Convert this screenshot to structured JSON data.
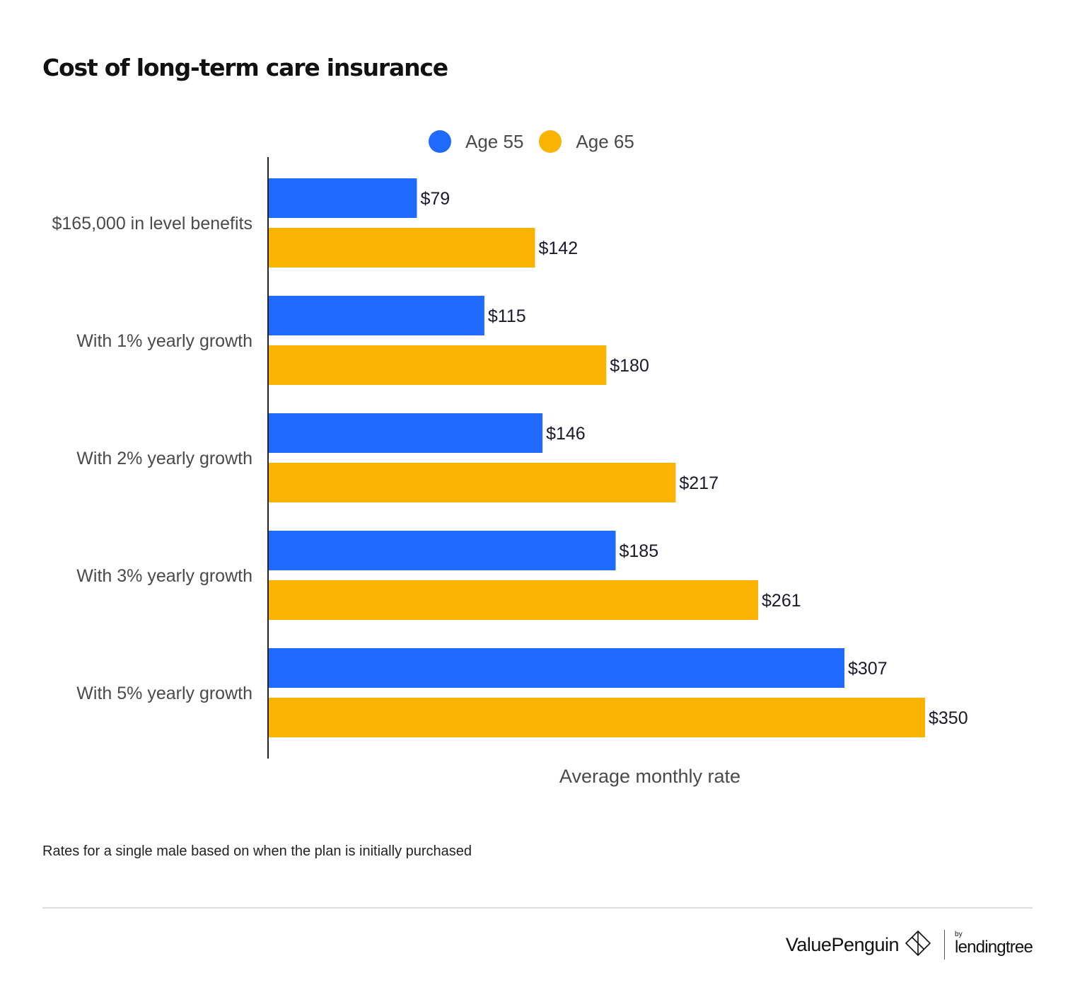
{
  "title": "Cost of long-term care insurance",
  "footnote": "Rates for a single male based on when the plan is initially purchased",
  "brand": {
    "main": "ValuePenguin",
    "by": "by",
    "partner": "lendingtree"
  },
  "colors": {
    "age55": "#1f6bff",
    "age65": "#f9b300",
    "axis": "#222222",
    "divider": "#dcdcdc"
  },
  "chart_data": {
    "type": "bar",
    "orientation": "horizontal",
    "title": "Cost of long-term care insurance",
    "xlabel": "Average monthly rate",
    "ylabel": "",
    "categories": [
      "$165,000 in level benefits",
      "With 1% yearly growth",
      "With 2% yearly growth",
      "With 3% yearly growth",
      "With 5% yearly growth"
    ],
    "series": [
      {
        "name": "Age 55",
        "color": "#1f6bff",
        "values": [
          79,
          115,
          146,
          185,
          307
        ],
        "labels": [
          "$79",
          "$115",
          "$146",
          "$185",
          "$307"
        ]
      },
      {
        "name": "Age 65",
        "color": "#f9b300",
        "values": [
          142,
          180,
          217,
          261,
          350
        ],
        "labels": [
          "$142",
          "$180",
          "$217",
          "$261",
          "$350"
        ]
      }
    ],
    "xlim": [
      0,
      350
    ],
    "legend": "top-center",
    "grid": false
  }
}
